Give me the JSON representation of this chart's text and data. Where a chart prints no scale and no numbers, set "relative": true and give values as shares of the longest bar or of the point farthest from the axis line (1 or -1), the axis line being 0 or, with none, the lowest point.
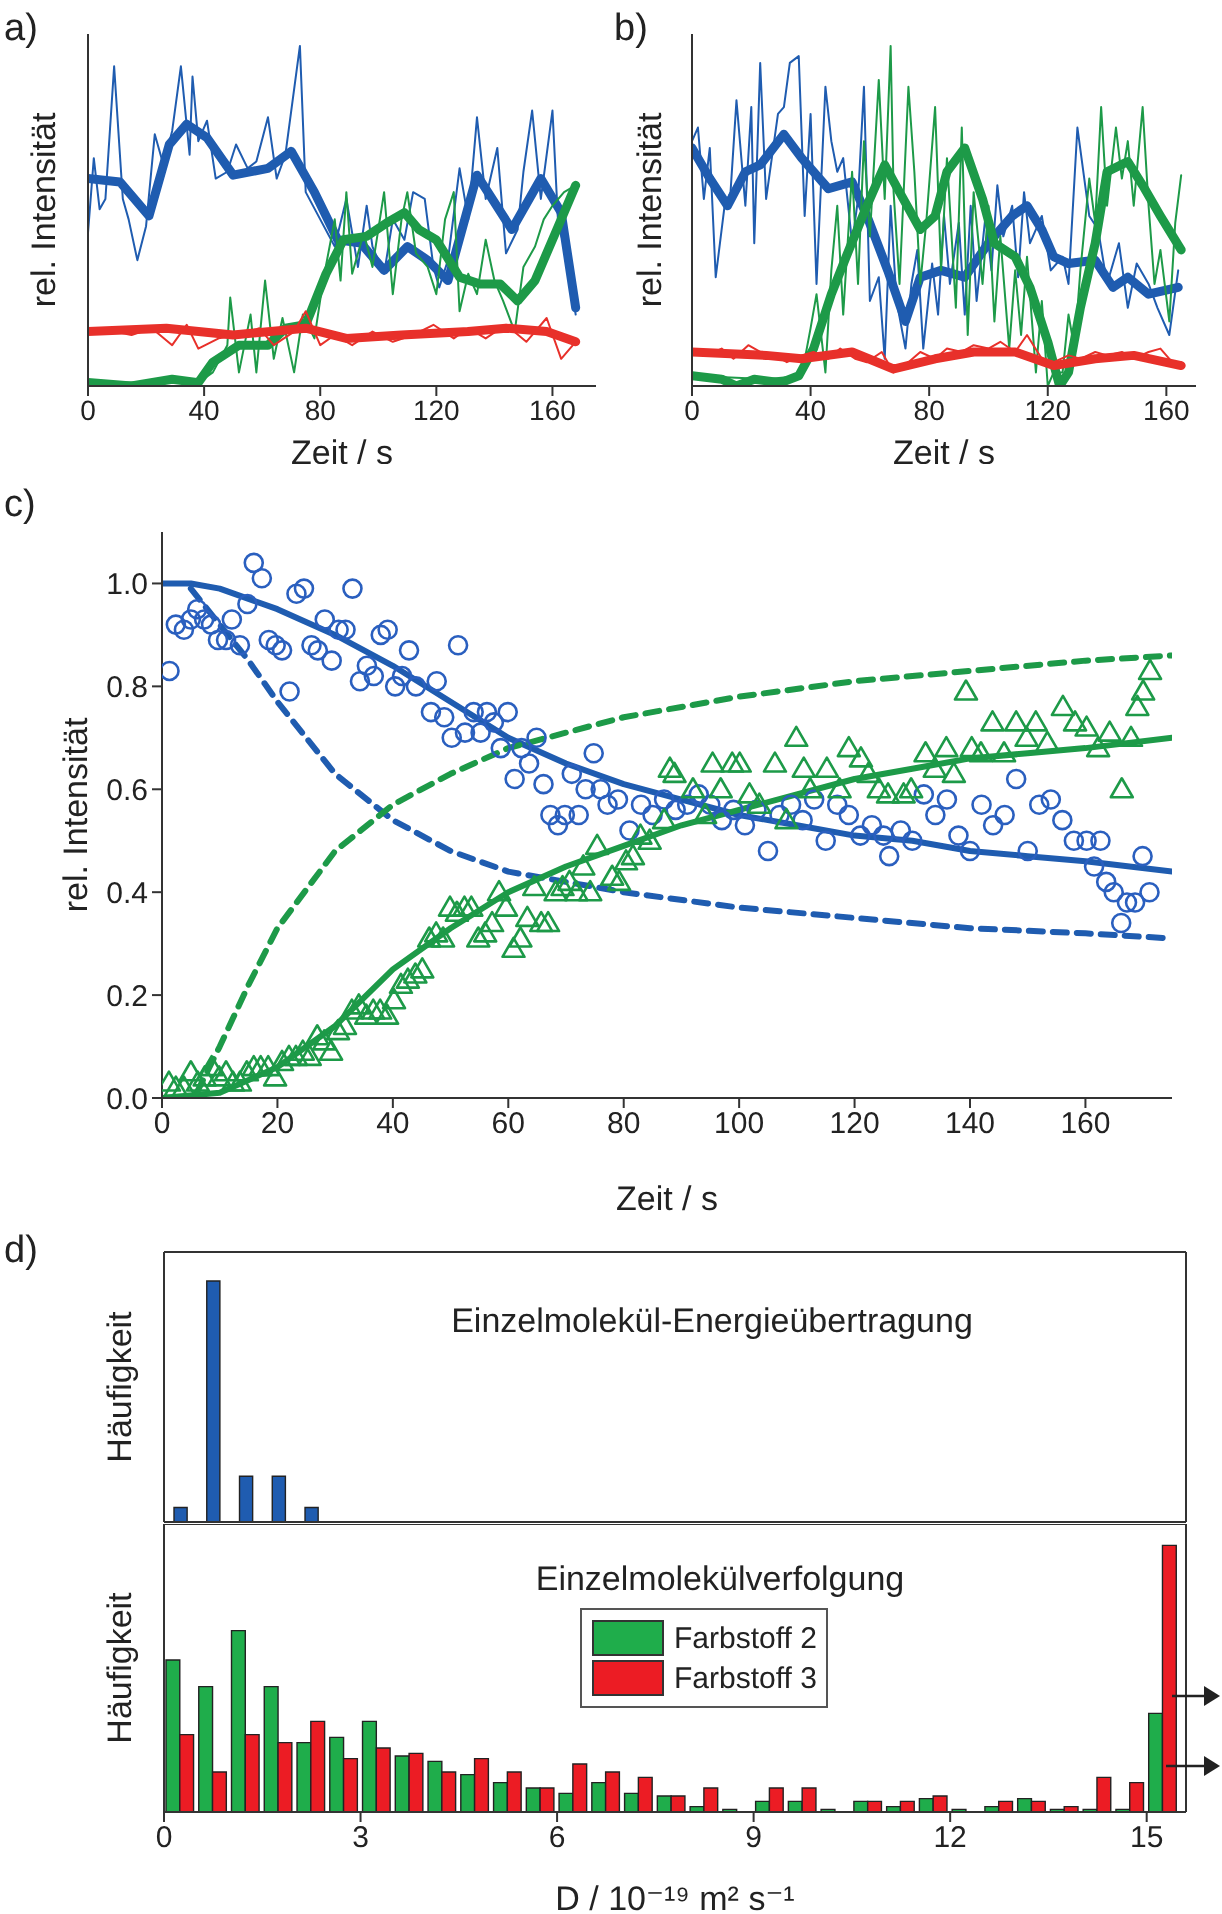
{
  "chart_data": [
    {
      "type": "line",
      "title": "a)",
      "xlabel": "Zeit / s",
      "ylabel": "rel. Intensität",
      "relative": true,
      "xlim": [
        0,
        175
      ],
      "xticks": [
        0,
        40,
        80,
        120,
        160
      ],
      "series": [
        {
          "color": "#1f5cb0",
          "x": [
            0,
            2,
            4,
            6,
            9,
            12,
            14,
            17,
            20,
            23,
            26,
            29,
            32,
            35,
            36,
            38,
            41,
            44,
            48,
            51,
            55,
            58,
            62,
            65,
            68,
            73,
            75,
            80,
            85,
            89,
            93,
            96,
            98,
            102,
            105,
            109,
            112,
            116,
            119,
            121,
            124,
            128,
            131,
            134,
            137,
            141,
            144,
            148,
            150,
            153,
            156,
            160,
            162,
            165,
            168
          ],
          "values": [
            0.45,
            0.67,
            0.52,
            0.55,
            0.94,
            0.55,
            0.49,
            0.37,
            0.47,
            0.74,
            0.65,
            0.75,
            0.94,
            0.68,
            0.91,
            0.72,
            0.78,
            0.61,
            0.63,
            0.71,
            0.64,
            0.66,
            0.79,
            0.61,
            0.68,
            1,
            0.57,
            0.49,
            0.41,
            0.55,
            0.35,
            0.53,
            0.41,
            0.33,
            0.49,
            0.43,
            0.57,
            0.55,
            0.35,
            0.29,
            0.37,
            0.64,
            0.49,
            0.79,
            0.55,
            0.7,
            0.39,
            0.46,
            0.63,
            0.81,
            0.55,
            0.81,
            0.47,
            0.39,
            0.21
          ]
        },
        {
          "color": "#1f5cb0",
          "x": [
            0,
            11,
            21,
            28,
            34,
            41,
            50,
            62,
            70,
            78,
            86,
            94,
            102,
            110,
            117,
            124,
            134,
            146,
            156,
            163,
            168
          ],
          "values": [
            0.61,
            0.6,
            0.5,
            0.71,
            0.77,
            0.73,
            0.62,
            0.64,
            0.69,
            0.57,
            0.43,
            0.42,
            0.34,
            0.41,
            0.37,
            0.31,
            0.62,
            0.46,
            0.61,
            0.51,
            0.23
          ]
        },
        {
          "color": "#1d9a48",
          "x": [
            0,
            38,
            43,
            48,
            49,
            52,
            56,
            58,
            61,
            64,
            67,
            71,
            74,
            78,
            81,
            85,
            87,
            89,
            91,
            95,
            98,
            102,
            105,
            108,
            110,
            113,
            117,
            120,
            123,
            126,
            128,
            131,
            134,
            137,
            140,
            143,
            147,
            150,
            154,
            157,
            160,
            164,
            168
          ],
          "values": [
            0.01,
            0.01,
            0.04,
            0.12,
            0.26,
            0.04,
            0.21,
            0.04,
            0.31,
            0.08,
            0.2,
            0.04,
            0.21,
            0.14,
            0.31,
            0.49,
            0.31,
            0.57,
            0.33,
            0.45,
            0.35,
            0.57,
            0.27,
            0.49,
            0.57,
            0.39,
            0.35,
            0.27,
            0.49,
            0.57,
            0.22,
            0.33,
            0.27,
            0.43,
            0.31,
            0.25,
            0.16,
            0.35,
            0.41,
            0.49,
            0.53,
            0.57,
            0.59
          ]
        },
        {
          "color": "#1d9a48",
          "x": [
            0,
            15,
            29,
            38,
            43,
            52,
            62,
            68,
            75,
            82,
            88,
            96,
            103,
            109,
            114,
            120,
            128,
            135,
            142,
            148,
            154,
            162,
            168
          ],
          "values": [
            0.01,
            0,
            0.02,
            0.01,
            0.07,
            0.12,
            0.12,
            0.17,
            0.18,
            0.33,
            0.43,
            0.44,
            0.48,
            0.51,
            0.46,
            0.43,
            0.32,
            0.3,
            0.3,
            0.25,
            0.31,
            0.47,
            0.59
          ]
        },
        {
          "color": "#e8302a",
          "x": [
            0,
            9,
            15,
            22,
            29,
            34,
            38,
            45,
            52,
            59,
            64,
            71,
            75,
            80,
            85,
            91,
            98,
            105,
            112,
            119,
            126,
            131,
            137,
            144,
            151,
            158,
            163,
            168
          ],
          "values": [
            0.17,
            0.16,
            0.15,
            0.17,
            0.12,
            0.18,
            0.11,
            0.14,
            0.15,
            0.17,
            0.12,
            0.16,
            0.22,
            0.12,
            0.15,
            0.12,
            0.16,
            0.13,
            0.15,
            0.18,
            0.14,
            0.17,
            0.14,
            0.18,
            0.13,
            0.2,
            0.08,
            0.13
          ]
        },
        {
          "color": "#e8302a",
          "x": [
            0,
            27,
            50,
            75,
            89,
            108,
            131,
            144,
            158,
            168
          ],
          "values": [
            0.16,
            0.17,
            0.15,
            0.17,
            0.14,
            0.15,
            0.16,
            0.17,
            0.16,
            0.13
          ]
        }
      ]
    },
    {
      "type": "line",
      "title": "b)",
      "xlabel": "Zeit / s",
      "ylabel": "rel. Intensität",
      "relative": true,
      "xlim": [
        0,
        170
      ],
      "xticks": [
        0,
        40,
        80,
        120,
        160
      ],
      "series": [
        {
          "color": "#1f5cb0",
          "x": [
            0,
            2,
            4,
            6,
            8,
            11,
            13,
            15,
            18,
            20,
            21,
            23,
            25,
            29,
            31,
            33,
            36,
            38,
            40,
            42,
            45,
            47,
            49,
            51,
            54,
            56,
            58,
            60,
            63,
            65,
            67,
            69,
            72,
            74,
            76,
            78,
            81,
            83,
            85,
            87,
            90,
            92,
            94,
            96,
            99,
            101,
            103,
            105,
            108,
            110,
            112,
            114,
            118,
            121,
            125,
            127,
            130,
            134,
            137,
            140,
            144,
            147,
            150,
            154,
            157,
            161,
            164
          ],
          "values": [
            0.72,
            0.76,
            0.55,
            0.7,
            0.32,
            0.53,
            0.57,
            0.84,
            0.53,
            0.82,
            0.42,
            0.95,
            0.55,
            0.8,
            0.82,
            0.95,
            0.97,
            0.5,
            0.8,
            0.3,
            0.88,
            0.72,
            0.63,
            0.67,
            0.42,
            0.55,
            0.88,
            0.25,
            0.32,
            0.08,
            0.53,
            0.25,
            0.11,
            0.3,
            0.4,
            0.11,
            0.36,
            0.21,
            0.5,
            0.3,
            0.48,
            0.21,
            0.53,
            0.25,
            0.5,
            0.34,
            0.59,
            0.44,
            0.53,
            0.32,
            0.57,
            0.42,
            0.5,
            0.34,
            0.38,
            0.3,
            0.76,
            0.5,
            0.46,
            0.3,
            0.42,
            0.23,
            0.36,
            0.3,
            0.23,
            0.15,
            0.34
          ]
        },
        {
          "color": "#1f5cb0",
          "x": [
            0,
            6,
            12,
            18,
            23,
            31,
            37,
            46,
            54,
            59,
            66,
            72,
            77,
            84,
            92,
            100,
            108,
            113,
            118,
            122,
            127,
            136,
            142,
            147,
            154,
            164
          ],
          "values": [
            0.7,
            0.61,
            0.53,
            0.63,
            0.65,
            0.74,
            0.67,
            0.58,
            0.6,
            0.5,
            0.34,
            0.19,
            0.32,
            0.34,
            0.32,
            0.42,
            0.5,
            0.53,
            0.46,
            0.38,
            0.36,
            0.37,
            0.29,
            0.32,
            0.27,
            0.29
          ]
        },
        {
          "color": "#1d9a48",
          "x": [
            0,
            25,
            37,
            40,
            42,
            45,
            47,
            49,
            51,
            54,
            56,
            58,
            60,
            63,
            65,
            67,
            68,
            70,
            73,
            75,
            77,
            79,
            82,
            84,
            86,
            89,
            91,
            93,
            95,
            98,
            100,
            102,
            104,
            107,
            109,
            111,
            113,
            116,
            118,
            120,
            122,
            125,
            127,
            129,
            131,
            134,
            136,
            138,
            140,
            143,
            145,
            147,
            149,
            152,
            154,
            156,
            158,
            161,
            163,
            165
          ],
          "values": [
            0.03,
            0.02,
            0.03,
            0.17,
            0.27,
            0.04,
            0.34,
            0.53,
            0.21,
            0.63,
            0.3,
            0.72,
            0.44,
            0.9,
            0.55,
            1,
            0.57,
            0.3,
            0.88,
            0.63,
            0.3,
            0.48,
            0.82,
            0.34,
            0.67,
            0.23,
            0.76,
            0.15,
            0.57,
            0.3,
            0.53,
            0.19,
            0.44,
            0.11,
            0.34,
            0.15,
            0.38,
            0.04,
            0.25,
            0,
            0.04,
            0.04,
            0.21,
            0.11,
            0.34,
            0.61,
            0.48,
            0.82,
            0.53,
            0.76,
            0.61,
            0.72,
            0.53,
            0.82,
            0.53,
            0.3,
            0.4,
            0.19,
            0.48,
            0.62
          ]
        },
        {
          "color": "#1d9a48",
          "x": [
            0,
            10,
            15,
            21,
            30,
            36,
            41,
            47,
            52,
            59,
            65,
            70,
            77,
            82,
            86,
            92,
            98,
            102,
            109,
            114,
            120,
            124,
            127,
            131,
            136,
            140,
            147,
            152,
            158,
            165
          ],
          "values": [
            0.03,
            0.02,
            0,
            0.02,
            0.01,
            0.03,
            0.11,
            0.27,
            0.38,
            0.53,
            0.65,
            0.57,
            0.46,
            0.5,
            0.63,
            0.7,
            0.55,
            0.42,
            0.38,
            0.29,
            0.13,
            0,
            0.04,
            0.23,
            0.42,
            0.63,
            0.66,
            0.59,
            0.5,
            0.4
          ]
        },
        {
          "color": "#e8302a",
          "x": [
            0,
            5,
            10,
            14,
            19,
            23,
            28,
            32,
            37,
            41,
            46,
            50,
            55,
            59,
            64,
            68,
            73,
            77,
            82,
            86,
            91,
            95,
            100,
            104,
            109,
            113,
            118,
            122,
            127,
            131,
            136,
            140,
            145,
            149,
            154,
            158,
            163,
            165
          ],
          "values": [
            0.1,
            0.09,
            0.11,
            0.08,
            0.12,
            0.1,
            0.09,
            0.07,
            0.09,
            0.1,
            0.08,
            0.11,
            0.08,
            0.07,
            0.1,
            0.04,
            0.07,
            0.1,
            0.08,
            0.11,
            0.1,
            0.12,
            0.11,
            0.13,
            0.1,
            0.15,
            0.08,
            0.07,
            0.09,
            0.08,
            0.1,
            0.09,
            0.1,
            0.08,
            0.1,
            0.11,
            0.06,
            0.07
          ]
        },
        {
          "color": "#e8302a",
          "x": [
            0,
            25,
            37,
            54,
            68,
            82,
            95,
            109,
            122,
            136,
            149,
            165
          ],
          "values": [
            0.1,
            0.09,
            0.08,
            0.1,
            0.05,
            0.08,
            0.1,
            0.1,
            0.06,
            0.08,
            0.09,
            0.06
          ]
        }
      ]
    },
    {
      "type": "scatter",
      "title": "c)",
      "xlabel": "Zeit / s",
      "ylabel": "rel. Intensität",
      "xlim": [
        0,
        175
      ],
      "xticks": [
        0,
        20,
        40,
        60,
        80,
        100,
        120,
        140,
        160
      ],
      "ylim": [
        0,
        1.1
      ],
      "yticks": [
        {
          "value": 0,
          "label": "0.0"
        },
        {
          "value": 0.2,
          "label": "0.2"
        },
        {
          "value": 0.4,
          "label": "0.4"
        },
        {
          "value": 0.6,
          "label": "0.6"
        },
        {
          "value": 0.8,
          "label": "0.8"
        },
        {
          "value": 1,
          "label": "1.0"
        }
      ],
      "series": [
        {
          "marker": "circle",
          "color": "#2a5fbf",
          "x": [
            1.3,
            2.4,
            3.8,
            5.0,
            6.1,
            7.3,
            8.5,
            9.7,
            11.1,
            12.1,
            13.5,
            14.8,
            15.9,
            17.3,
            18.5,
            19.7,
            20.8,
            22.1,
            23.3,
            24.6,
            25.9,
            27.0,
            28.2,
            29.4,
            30.6,
            31.8,
            33.0,
            34.3,
            35.5,
            36.7,
            37.9,
            39.1,
            40.4,
            41.6,
            42.8,
            44.0,
            46.6,
            47.6,
            48.9,
            50.2,
            51.3,
            52.5,
            54.0,
            55.2,
            56.3,
            57.5,
            58.7,
            59.9,
            61.1,
            62.3,
            63.6,
            64.9,
            66.1,
            67.3,
            68.6,
            69.8,
            71.0,
            72.2,
            73.4,
            74.8,
            76.0,
            77.2,
            79,
            81,
            83,
            85,
            87,
            89,
            91,
            93,
            95,
            97,
            99,
            101,
            103,
            105,
            107,
            109,
            111,
            113,
            115,
            117,
            119,
            121,
            123,
            125,
            126,
            128,
            130,
            132,
            134,
            136,
            138,
            140,
            142,
            144,
            146,
            148,
            150,
            152,
            154,
            156,
            158,
            160.2,
            161.5,
            162.6,
            163.6,
            164.9,
            166.2,
            167.2,
            168.6,
            169.9,
            171.1
          ],
          "values": [
            0.83,
            0.92,
            0.91,
            0.93,
            0.95,
            0.93,
            0.92,
            0.89,
            0.89,
            0.93,
            0.88,
            0.96,
            1.04,
            1.01,
            0.89,
            0.88,
            0.87,
            0.79,
            0.98,
            0.99,
            0.88,
            0.87,
            0.93,
            0.85,
            0.91,
            0.91,
            0.99,
            0.81,
            0.84,
            0.82,
            0.9,
            0.91,
            0.8,
            0.82,
            0.87,
            0.8,
            0.75,
            0.81,
            0.74,
            0.7,
            0.88,
            0.71,
            0.75,
            0.71,
            0.75,
            0.73,
            0.68,
            0.75,
            0.62,
            0.68,
            0.65,
            0.7,
            0.61,
            0.55,
            0.53,
            0.55,
            0.63,
            0.55,
            0.6,
            0.67,
            0.6,
            0.57,
            0.58,
            0.52,
            0.57,
            0.55,
            0.58,
            0.56,
            0.57,
            0.59,
            0.57,
            0.54,
            0.56,
            0.53,
            0.56,
            0.48,
            0.55,
            0.57,
            0.54,
            0.58,
            0.5,
            0.57,
            0.55,
            0.51,
            0.53,
            0.51,
            0.47,
            0.52,
            0.5,
            0.59,
            0.55,
            0.58,
            0.51,
            0.48,
            0.57,
            0.53,
            0.55,
            0.62,
            0.48,
            0.57,
            0.58,
            0.54,
            0.5,
            0.5,
            0.45,
            0.5,
            0.42,
            0.4,
            0.34,
            0.38,
            0.38,
            0.47,
            0.4
          ]
        },
        {
          "marker": "triangle",
          "color": "#1d9a48",
          "x": [
            1.2,
            2.4,
            3.8,
            5.0,
            6.2,
            7.4,
            8.6,
            9.9,
            11.1,
            12.3,
            13.5,
            14.7,
            15.9,
            17.1,
            18.4,
            19.6,
            20.8,
            22.0,
            23.2,
            24.4,
            25.6,
            26.9,
            28.1,
            29.3,
            30.5,
            31.7,
            32.9,
            34.1,
            35.4,
            36.6,
            37.8,
            39.0,
            40.2,
            41.4,
            42.6,
            43.9,
            45.1,
            46.3,
            47.5,
            48.7,
            49.9,
            51.1,
            52.4,
            53.6,
            54.8,
            56.0,
            57.2,
            58.4,
            59.6,
            60.9,
            62.1,
            63.3,
            64.5,
            65.7,
            66.9,
            68.2,
            69.4,
            70.6,
            71.8,
            73.0,
            74.2,
            75.4,
            78.0,
            79.2,
            80.4,
            81.6,
            82.9,
            84.5,
            87.0,
            88.0,
            88.8,
            92.0,
            94.1,
            95.4,
            96.8,
            98.8,
            100.1,
            101.8,
            103.5,
            106.2,
            108.2,
            109.9,
            111.2,
            112.3,
            115.2,
            117.4,
            119.0,
            121.1,
            122.4,
            124.2,
            125.8,
            128.5,
            129.8,
            132.3,
            133.9,
            135.9,
            137.2,
            139.3,
            140.3,
            141.9,
            143.9,
            145.9,
            148.0,
            149.8,
            151.4,
            153.4,
            156.1,
            158.2,
            160.2,
            162.2,
            164.2,
            166.3,
            167.9,
            169.0,
            170.0,
            171.2
          ],
          "values": [
            0.03,
            0.02,
            0.02,
            0.05,
            0.03,
            0.04,
            0.06,
            0.04,
            0.05,
            0.03,
            0.03,
            0.05,
            0.06,
            0.06,
            0.06,
            0.04,
            0.07,
            0.08,
            0.08,
            0.09,
            0.08,
            0.12,
            0.11,
            0.09,
            0.13,
            0.14,
            0.17,
            0.18,
            0.16,
            0.17,
            0.17,
            0.16,
            0.19,
            0.22,
            0.23,
            0.24,
            0.25,
            0.31,
            0.32,
            0.31,
            0.37,
            0.36,
            0.37,
            0.37,
            0.31,
            0.32,
            0.34,
            0.4,
            0.37,
            0.29,
            0.31,
            0.35,
            0.41,
            0.34,
            0.34,
            0.4,
            0.41,
            0.42,
            0.4,
            0.45,
            0.4,
            0.49,
            0.43,
            0.42,
            0.46,
            0.47,
            0.51,
            0.5,
            0.54,
            0.64,
            0.63,
            0.6,
            0.55,
            0.65,
            0.6,
            0.65,
            0.65,
            0.59,
            0.57,
            0.65,
            0.54,
            0.7,
            0.64,
            0.6,
            0.64,
            0.6,
            0.68,
            0.66,
            0.63,
            0.6,
            0.59,
            0.59,
            0.6,
            0.67,
            0.64,
            0.68,
            0.63,
            0.79,
            0.68,
            0.67,
            0.73,
            0.67,
            0.73,
            0.7,
            0.73,
            0.69,
            0.76,
            0.73,
            0.72,
            0.68,
            0.71,
            0.6,
            0.7,
            0.76,
            0.79,
            0.83
          ]
        },
        {
          "type": "line",
          "line_style": "solid",
          "color": "#1f5cb0",
          "x": [
            0,
            5,
            10,
            20,
            30,
            40,
            50,
            60,
            70,
            80,
            90,
            100,
            110,
            120,
            130,
            140,
            150,
            160,
            175
          ],
          "values": [
            1.0,
            1.0,
            0.99,
            0.95,
            0.9,
            0.84,
            0.77,
            0.7,
            0.65,
            0.61,
            0.58,
            0.55,
            0.53,
            0.51,
            0.5,
            0.48,
            0.47,
            0.46,
            0.44
          ]
        },
        {
          "type": "line",
          "line_style": "dashed",
          "color": "#1f5cb0",
          "x": [
            5,
            10,
            15,
            20,
            30,
            40,
            50,
            60,
            70,
            80,
            100,
            120,
            140,
            160,
            175
          ],
          "values": [
            0.99,
            0.92,
            0.85,
            0.77,
            0.63,
            0.54,
            0.48,
            0.44,
            0.42,
            0.4,
            0.37,
            0.35,
            0.33,
            0.32,
            0.31
          ]
        },
        {
          "type": "line",
          "line_style": "solid",
          "color": "#1d9a48",
          "x": [
            0,
            10,
            20,
            30,
            40,
            50,
            60,
            70,
            80,
            90,
            100,
            110,
            120,
            130,
            140,
            150,
            160,
            175
          ],
          "values": [
            0,
            0.01,
            0.06,
            0.14,
            0.25,
            0.33,
            0.4,
            0.45,
            0.49,
            0.53,
            0.56,
            0.59,
            0.62,
            0.64,
            0.66,
            0.67,
            0.68,
            0.7
          ]
        },
        {
          "type": "line",
          "line_style": "dashed",
          "color": "#1d9a48",
          "x": [
            6,
            10,
            15,
            20,
            30,
            40,
            50,
            60,
            70,
            80,
            100,
            120,
            140,
            160,
            175
          ],
          "values": [
            0.01,
            0.1,
            0.22,
            0.33,
            0.48,
            0.57,
            0.63,
            0.68,
            0.71,
            0.74,
            0.78,
            0.81,
            0.83,
            0.85,
            0.86
          ]
        }
      ]
    },
    {
      "type": "bar",
      "title": "d)",
      "ylabel": "Häufigkeit",
      "annotations": [
        "Einzelmolekül-Energieübertragung"
      ],
      "relative": true,
      "tick_labels": false,
      "xlim": [
        0,
        15.6
      ],
      "xticks": [
        0,
        3,
        6,
        9,
        12,
        15
      ],
      "x": [
        0.25,
        0.75,
        1.25,
        1.75,
        2.25
      ],
      "color": "#1f5cb0",
      "values": [
        0.06,
        1,
        0.19,
        0.19,
        0.06
      ]
    },
    {
      "type": "bar",
      "xlabel": "D / 10⁻¹⁹ m² s⁻¹",
      "ylabel": "Häufigkeit",
      "annotations": [
        "Einzelmolekülverfolgung"
      ],
      "legend": "top",
      "relative": true,
      "xlim": [
        0,
        15.6
      ],
      "xticks": [
        0,
        3,
        6,
        9,
        12,
        15
      ],
      "x": [
        0.25,
        0.75,
        1.25,
        1.75,
        2.25,
        2.75,
        3.25,
        3.75,
        4.25,
        4.75,
        5.25,
        5.75,
        6.25,
        6.75,
        7.25,
        7.75,
        8.25,
        8.75,
        9.25,
        9.75,
        10.25,
        10.75,
        11.25,
        11.75,
        12.25,
        12.75,
        13.25,
        13.75,
        14.25,
        14.75,
        15.25
      ],
      "series": [
        {
          "name": "Farbstoff 2",
          "color": "#1fad4b",
          "values": [
            0.57,
            0.47,
            0.68,
            0.47,
            0.26,
            0.28,
            0.34,
            0.21,
            0.19,
            0.14,
            0.11,
            0.09,
            0.07,
            0.11,
            0.07,
            0.06,
            0.02,
            0.01,
            0.04,
            0.04,
            0.01,
            0.04,
            0.02,
            0.05,
            0.01,
            0.02,
            0.05,
            0.01,
            0.01,
            0.01,
            0.37
          ]
        },
        {
          "name": "Farbstoff 3",
          "color": "#ec1c24",
          "values": [
            0.29,
            0.15,
            0.29,
            0.26,
            0.34,
            0.2,
            0.24,
            0.22,
            0.15,
            0.2,
            0.15,
            0.09,
            0.18,
            0.15,
            0.13,
            0.06,
            0.09,
            0,
            0.09,
            0.09,
            0,
            0.04,
            0.04,
            0.06,
            0,
            0.04,
            0.04,
            0.02,
            0.13,
            0.11,
            1
          ]
        }
      ]
    }
  ]
}
